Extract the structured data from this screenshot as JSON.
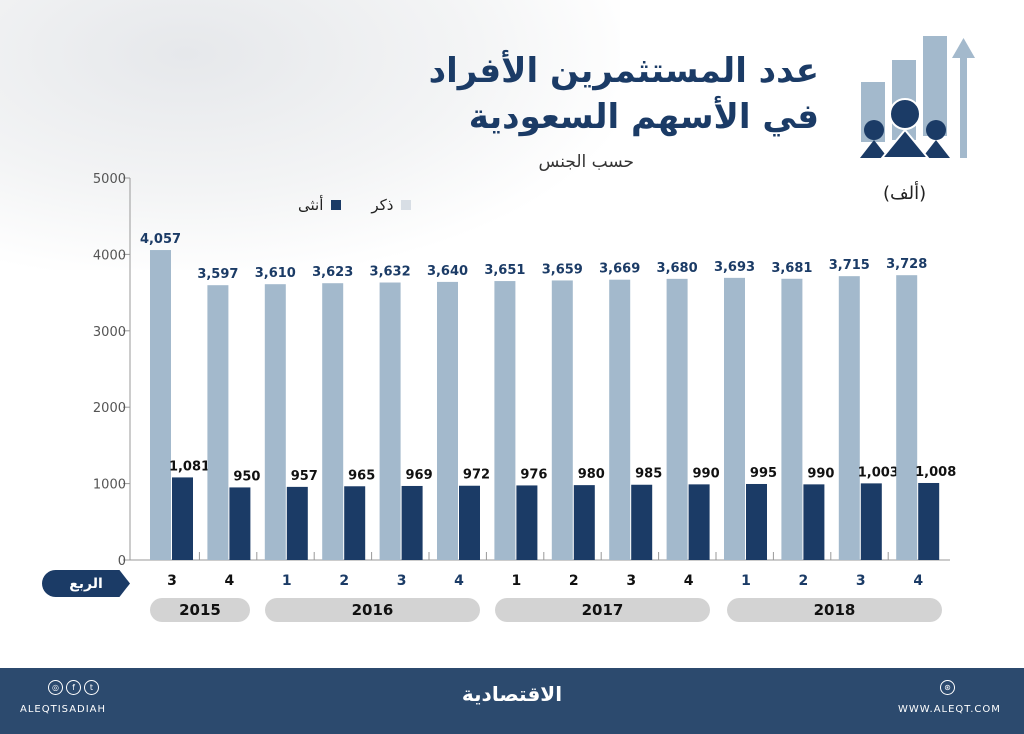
{
  "header": {
    "title_line1": "عدد المستثمرين الأفراد",
    "title_line2": "في الأسهم السعودية",
    "subtitle": "حسب الجنس",
    "unit": "(ألف)",
    "icon": "investors-growth-icon"
  },
  "legend": {
    "male": "ذكر",
    "female": "أنثى"
  },
  "quarter_label": "الربع",
  "years": [
    "2015",
    "2016",
    "2017",
    "2018"
  ],
  "footer": {
    "handle": "ALEQTISADIAH",
    "logo": "الاقتصادية",
    "website": "WWW.ALEQT.COM",
    "social_icons": [
      "instagram-icon",
      "facebook-icon",
      "twitter-icon"
    ]
  },
  "colors": {
    "male": "#a3b9cc",
    "female": "#1b3b66",
    "footer": "#2c4a6e",
    "year_pill": "#d3d3d3"
  },
  "chart_data": {
    "type": "bar",
    "categories": [
      "3",
      "4",
      "1",
      "2",
      "3",
      "4",
      "1",
      "2",
      "3",
      "4",
      "1",
      "2",
      "3",
      "4"
    ],
    "category_years": [
      "2015",
      "2015",
      "2016",
      "2016",
      "2016",
      "2016",
      "2017",
      "2017",
      "2017",
      "2017",
      "2018",
      "2018",
      "2018",
      "2018"
    ],
    "series": [
      {
        "name": "ذكر",
        "values": [
          4057,
          3597,
          3610,
          3623,
          3632,
          3640,
          3651,
          3659,
          3669,
          3680,
          3693,
          3681,
          3715,
          3728
        ],
        "labels": [
          "4,057",
          "3,597",
          "3,610",
          "3,623",
          "3,632",
          "3,640",
          "3,651",
          "3,659",
          "3,669",
          "3,680",
          "3,693",
          "3,681",
          "3,715",
          "3,728"
        ]
      },
      {
        "name": "أنثى",
        "values": [
          1081,
          950,
          957,
          965,
          969,
          972,
          976,
          980,
          985,
          990,
          995,
          990,
          1003,
          1008
        ],
        "labels": [
          "1,081",
          "950",
          "957",
          "965",
          "969",
          "972",
          "976",
          "980",
          "985",
          "990",
          "995",
          "990",
          "1,003",
          "1,008"
        ]
      }
    ],
    "yticks": [
      "0",
      "1000",
      "2000",
      "3000",
      "4000",
      "5000"
    ],
    "ylim": [
      0,
      5000
    ],
    "grid": false,
    "legend_position": "top-left"
  }
}
